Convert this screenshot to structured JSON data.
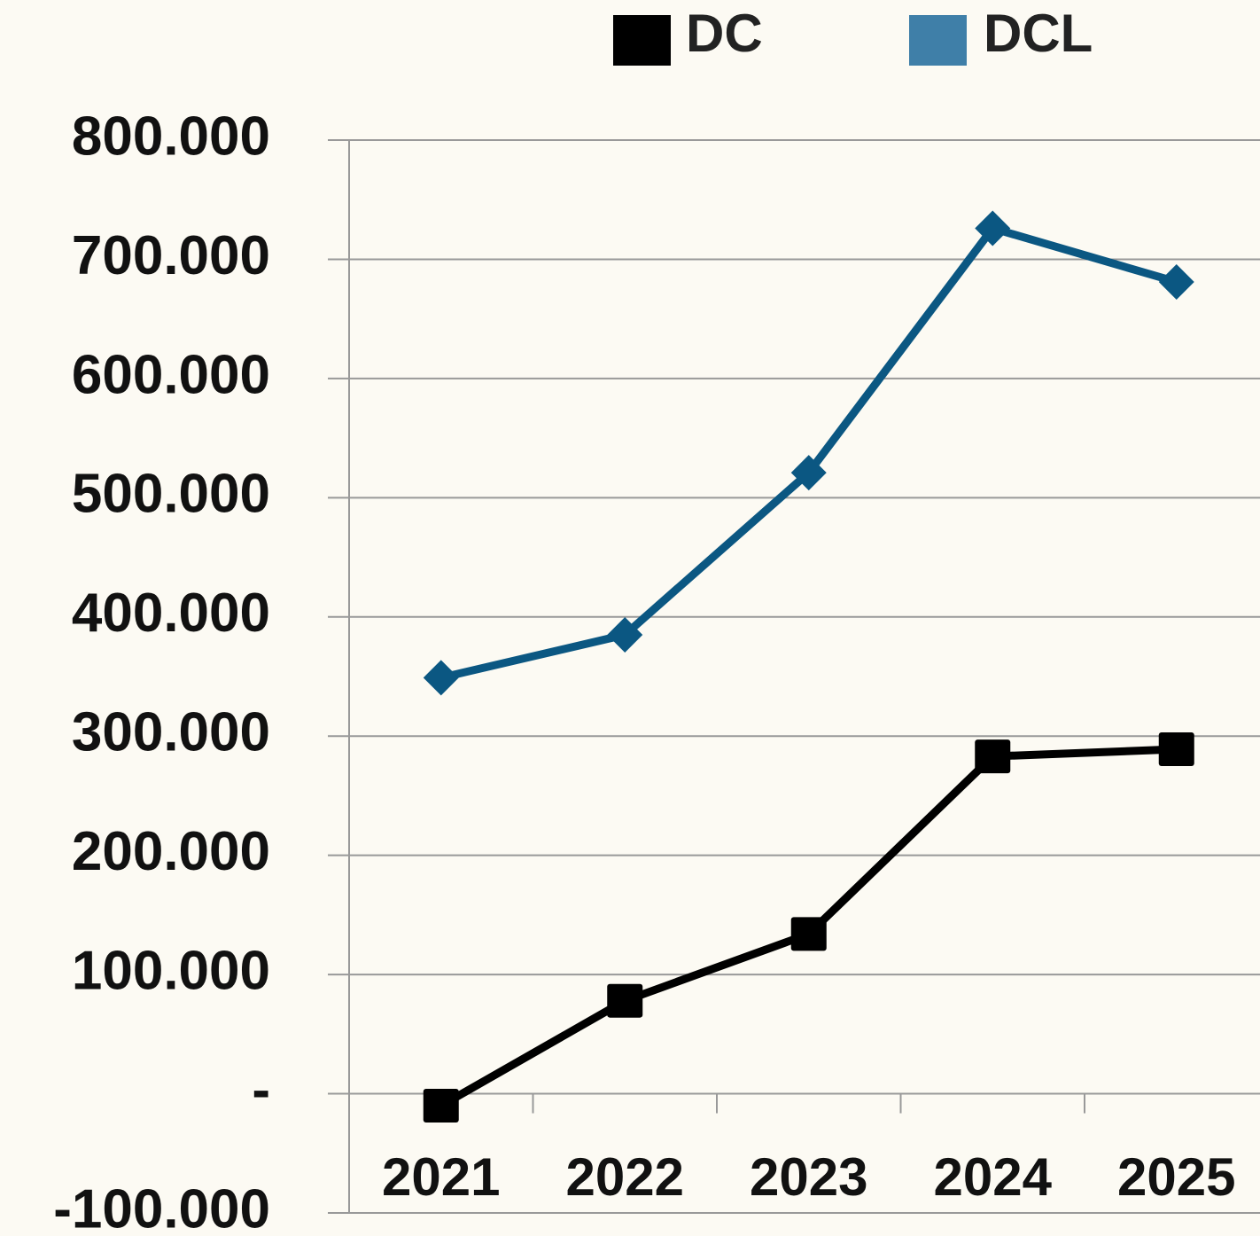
{
  "chart_data": {
    "type": "line",
    "categories": [
      "2021",
      "2022",
      "2023",
      "2024",
      "2025"
    ],
    "series": [
      {
        "name": "DC",
        "color": "#000000",
        "marker": "square",
        "values": [
          -10000,
          78000,
          134000,
          283000,
          289000
        ]
      },
      {
        "name": "DCL",
        "color": "#0b5782",
        "marker": "diamond",
        "values": [
          349000,
          385000,
          521000,
          726000,
          681000
        ]
      }
    ],
    "ylim": [
      -100000,
      800000
    ],
    "yticks": [
      {
        "value": -100000,
        "label": "-100.000"
      },
      {
        "value": 0,
        "label": "-"
      },
      {
        "value": 100000,
        "label": "100.000"
      },
      {
        "value": 200000,
        "label": "200.000"
      },
      {
        "value": 300000,
        "label": "300.000"
      },
      {
        "value": 400000,
        "label": "400.000"
      },
      {
        "value": 500000,
        "label": "500.000"
      },
      {
        "value": 600000,
        "label": "600.000"
      },
      {
        "value": 700000,
        "label": "700.000"
      },
      {
        "value": 800000,
        "label": "800.000"
      }
    ],
    "grid": true,
    "legend": "top"
  }
}
